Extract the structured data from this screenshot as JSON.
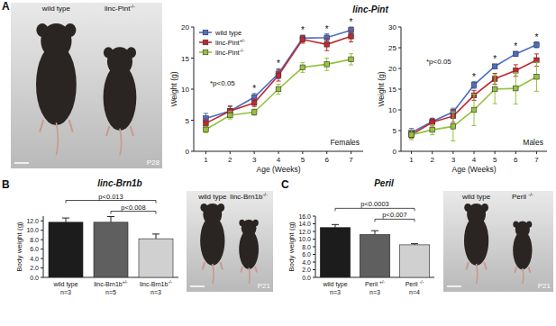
{
  "panel_labels": [
    "A",
    "B",
    "C"
  ],
  "photos": [
    {
      "labels": [
        "wild type",
        "linc-Pint-/-"
      ],
      "age": "P28"
    },
    {
      "labels": [
        "wild type",
        "linc-Brn1b-/-"
      ],
      "age": "P21"
    },
    {
      "labels": [
        "wild type",
        "Peril -/-"
      ],
      "age": "P21"
    }
  ],
  "chart_data": [
    {
      "type": "line",
      "title": "linc-Pint",
      "x_label": "Age (Weeks)",
      "y_label": "Weight (g)",
      "x": [
        1,
        2,
        3,
        4,
        5,
        6,
        7
      ],
      "xlim": [
        0.5,
        7.5
      ],
      "xticks": [
        1,
        2,
        3,
        4,
        5,
        6,
        7
      ],
      "ylim": [
        0,
        20
      ],
      "yticks": [
        0,
        5,
        10,
        15,
        20
      ],
      "legend": "upper left",
      "annotations": [
        "*p<0.05",
        "Females"
      ],
      "significant_x": [
        3,
        4,
        5,
        6,
        7
      ],
      "significance_label": "*",
      "series": [
        {
          "name": "wild type",
          "color": "#4a6fc4",
          "marker": "square",
          "values": [
            5.3,
            6.5,
            8.7,
            12.5,
            18.2,
            18.3,
            19.5
          ],
          "errors": [
            0.8,
            0.7,
            0.6,
            0.8,
            0.5,
            0.6,
            0.5
          ]
        },
        {
          "name": "linc-Pint+/-",
          "color": "#c0282d",
          "marker": "square",
          "values": [
            4.5,
            6.5,
            7.8,
            12.2,
            18.0,
            17.2,
            18.5
          ],
          "errors": [
            0.7,
            0.8,
            0.6,
            0.9,
            0.6,
            1.0,
            0.9
          ]
        },
        {
          "name": "linc-Pint-/-",
          "color": "#95c23d",
          "marker": "square",
          "values": [
            3.5,
            5.8,
            6.3,
            10.0,
            13.5,
            14.0,
            14.8
          ],
          "errors": [
            0.5,
            0.6,
            0.5,
            0.8,
            0.8,
            1.0,
            0.9
          ]
        }
      ]
    },
    {
      "type": "line",
      "x_label": "Age (Weeks)",
      "y_label": "Weight (g)",
      "x": [
        1,
        2,
        3,
        4,
        5,
        6,
        7
      ],
      "xlim": [
        0.5,
        7.5
      ],
      "xticks": [
        1,
        2,
        3,
        4,
        5,
        6,
        7
      ],
      "ylim": [
        0,
        30
      ],
      "yticks": [
        0,
        5,
        10,
        15,
        20,
        25,
        30
      ],
      "annotations": [
        "*p<0.05",
        "Males"
      ],
      "significant_x": [
        4,
        5,
        6,
        7
      ],
      "significance_label": "*",
      "series": [
        {
          "color": "#4a6fc4",
          "marker": "square",
          "values": [
            4.5,
            7.2,
            9.5,
            16.0,
            20.5,
            23.5,
            25.7
          ],
          "errors": [
            1.0,
            0.8,
            0.9,
            0.8,
            0.5,
            0.6,
            0.7
          ]
        },
        {
          "color": "#c0282d",
          "marker": "square",
          "values": [
            4.0,
            7.0,
            8.5,
            13.5,
            17.5,
            19.5,
            22.0
          ],
          "errors": [
            0.8,
            0.9,
            1.5,
            1.2,
            1.3,
            1.4,
            1.5
          ]
        },
        {
          "color": "#95c23d",
          "marker": "square",
          "values": [
            4.0,
            5.2,
            6.0,
            10.0,
            15.0,
            15.2,
            18.0
          ],
          "errors": [
            1.2,
            1.2,
            3.5,
            3.8,
            3.5,
            3.8,
            3.5
          ]
        }
      ]
    },
    {
      "type": "bar",
      "title": "linc-Brn1b",
      "y_label": "Body weight (g)",
      "categories": [
        "wild type",
        "linc-Brn1b+/-",
        "linc-Brn1b-/-"
      ],
      "group_sizes": [
        "n=3",
        "n=5",
        "n=3"
      ],
      "values": [
        11.7,
        11.7,
        8.2
      ],
      "errors": [
        0.9,
        1.2,
        1.0
      ],
      "colors": [
        "#1c1c1c",
        "#5f5f5f",
        "#d0d0d0"
      ],
      "ylim": [
        0,
        13
      ],
      "yticks": [
        {
          "value": 0,
          "label": "0.0"
        },
        {
          "value": 2,
          "label": "2.0"
        },
        {
          "value": 4,
          "label": "4.0"
        },
        {
          "value": 6,
          "label": "6.0"
        },
        {
          "value": 8,
          "label": "8.0"
        },
        {
          "value": 10,
          "label": "10.0"
        },
        {
          "value": 12,
          "label": "12.0"
        }
      ],
      "comparisons": [
        {
          "from": 0,
          "to": 2,
          "label": "p<0.013"
        },
        {
          "from": 1,
          "to": 2,
          "label": "p<0.008"
        }
      ]
    },
    {
      "type": "bar",
      "title": "Peril",
      "y_label": "Body weight (g)",
      "categories": [
        "wild type",
        "Peril +/-",
        "Peril -/-"
      ],
      "group_sizes": [
        "n=3",
        "n=3",
        "n=4"
      ],
      "values": [
        13.0,
        11.2,
        8.5
      ],
      "errors": [
        0.8,
        1.0,
        0.3
      ],
      "colors": [
        "#1c1c1c",
        "#5f5f5f",
        "#d0d0d0"
      ],
      "ylim": [
        0,
        16
      ],
      "yticks": [
        {
          "value": 0,
          "label": "0.0"
        },
        {
          "value": 2,
          "label": "2.0"
        },
        {
          "value": 4,
          "label": "4.0"
        },
        {
          "value": 6,
          "label": "6.0"
        },
        {
          "value": 8,
          "label": "8.0"
        },
        {
          "value": 10,
          "label": "10.0"
        },
        {
          "value": 12,
          "label": "12.0"
        },
        {
          "value": 14,
          "label": "14.0"
        },
        {
          "value": 16,
          "label": "16.0"
        }
      ],
      "comparisons": [
        {
          "from": 0,
          "to": 2,
          "label": "p<0.0003"
        },
        {
          "from": 1,
          "to": 2,
          "label": "p<0.007"
        }
      ]
    }
  ]
}
